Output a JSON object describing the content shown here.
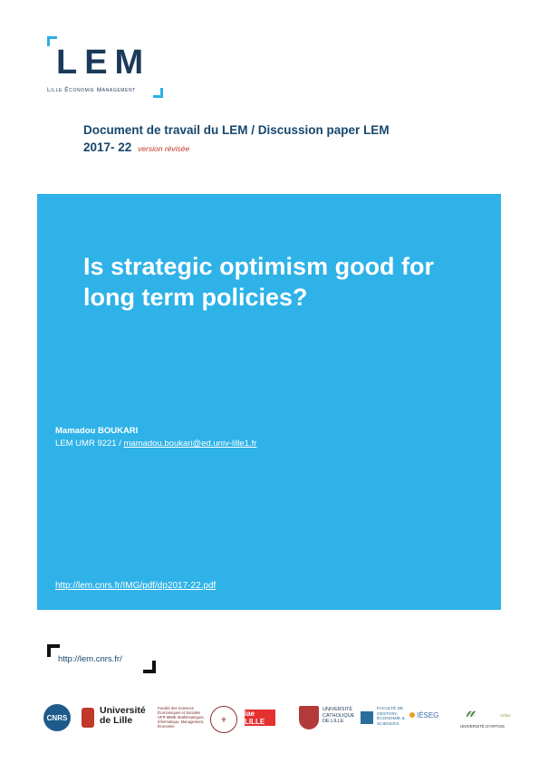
{
  "logo": {
    "letters": "LEM",
    "subtitle": "Lille Économie Management"
  },
  "header": {
    "line1": "Document de travail du LEM / Discussion paper LEM",
    "number": "2017- 22",
    "revision": "version révisée"
  },
  "cover": {
    "title": "Is strategic optimism good for long term policies?",
    "author": "Mamadou BOUKARI",
    "affiliation_prefix": "LEM UMR 9221 / ",
    "email": "mamadou.boukari@ed.univ-lille1.fr",
    "paper_url": "http://lem.cnrs.fr/IMG/pdf/dp2017-22.pdf"
  },
  "site": {
    "url": "http://lem.cnrs.fr/"
  },
  "partners": {
    "cnrs": "CNRS",
    "ulille": "Université de Lille",
    "faculty": "Faculté des Sciences Économiques et Sociales",
    "faculty2": "UFR MIME Mathématiques, Informatique, Management, Économie",
    "iae": "iae LILLE",
    "ucl": "UNIVERSITÉ CATHOLIQUE DE LILLE",
    "fgm": "FACULTÉ DE GESTION, ÉCONOMIE & SCIENCES",
    "ieseg": "IÉSEG",
    "ua": "UNIVERSITÉ D'ARTOIS",
    "ua2": "Artois"
  }
}
